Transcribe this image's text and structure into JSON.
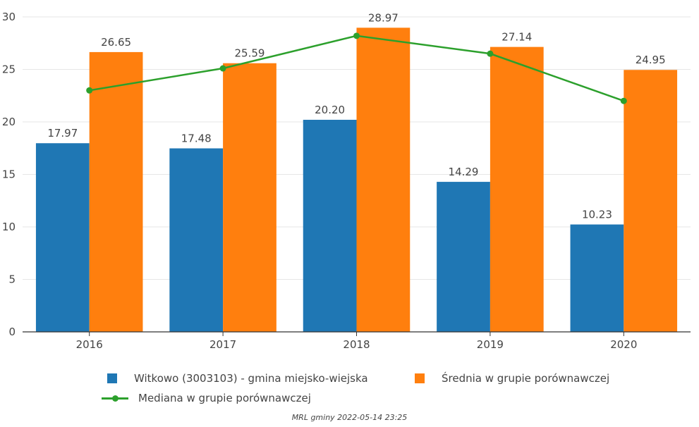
{
  "chart_data": {
    "type": "bar",
    "categories": [
      "2016",
      "2017",
      "2018",
      "2019",
      "2020"
    ],
    "ylim": [
      0,
      30
    ],
    "yticks": [
      0,
      5,
      10,
      15,
      20,
      25,
      30
    ],
    "grid": true,
    "legend_position": "bottom",
    "series": [
      {
        "name": "Witkowo (3003103) - gmina miejsko-wiejska",
        "type": "bar",
        "color": "#1f77b4",
        "values": [
          17.97,
          17.48,
          20.2,
          14.29,
          10.23
        ],
        "labels": [
          "17.97",
          "17.48",
          "20.20",
          "14.29",
          "10.23"
        ]
      },
      {
        "name": "Średnia w grupie porównawczej",
        "type": "bar",
        "color": "#ff7f0e",
        "values": [
          26.65,
          25.59,
          28.97,
          27.14,
          24.95
        ],
        "labels": [
          "26.65",
          "25.59",
          "28.97",
          "27.14",
          "24.95"
        ]
      },
      {
        "name": "Mediana w grupie porównawczej",
        "type": "line",
        "color": "#2ca02c",
        "values": [
          23.0,
          25.1,
          28.2,
          26.5,
          22.0
        ]
      }
    ]
  },
  "footer": "MRL gminy 2022-05-14 23:25"
}
